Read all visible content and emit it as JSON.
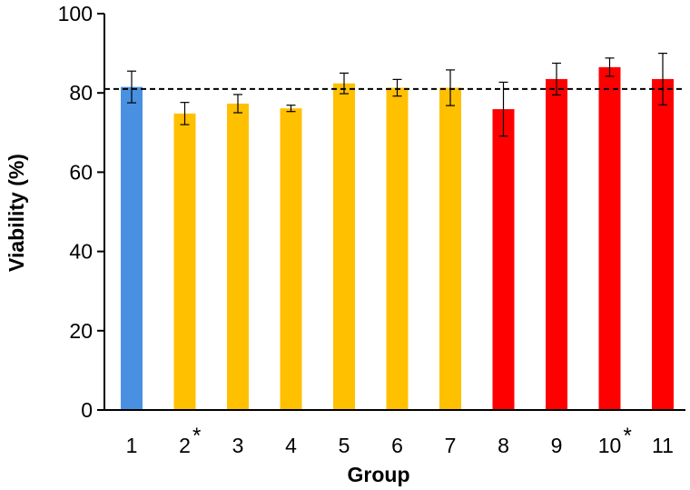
{
  "chart_data": {
    "type": "bar",
    "xlabel": "Group",
    "ylabel": "Viability (%)",
    "ylim": [
      0,
      100
    ],
    "yticks": [
      0,
      20,
      40,
      60,
      80,
      100
    ],
    "grid": false,
    "reference_line": {
      "value": 81,
      "style": "dashed"
    },
    "categories": [
      "1",
      "2",
      "3",
      "4",
      "5",
      "6",
      "7",
      "8",
      "9",
      "10",
      "11"
    ],
    "significance_marks": {
      "2": "*",
      "10": "*"
    },
    "values": [
      81.5,
      74.8,
      77.3,
      76.1,
      82.4,
      81.3,
      81.3,
      75.9,
      83.5,
      86.5,
      83.5
    ],
    "errors": [
      4.0,
      2.8,
      2.3,
      0.8,
      2.6,
      2.1,
      4.5,
      6.8,
      4.0,
      2.3,
      6.5
    ],
    "colors": [
      "#4a90e2",
      "#ffc000",
      "#ffc000",
      "#ffc000",
      "#ffc000",
      "#ffc000",
      "#ffc000",
      "#ff0000",
      "#ff0000",
      "#ff0000",
      "#ff0000"
    ]
  }
}
